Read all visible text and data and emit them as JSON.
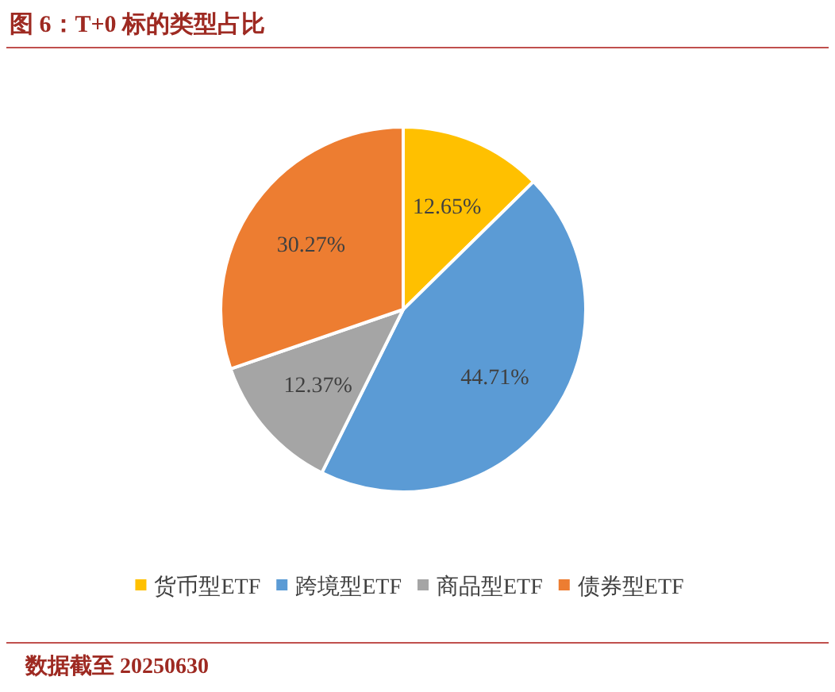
{
  "chart_data": {
    "type": "pie",
    "title": "图 6：T+0 标的类型占比",
    "categories": [
      "货币型ETF",
      "跨境型ETF",
      "商品型ETF",
      "债券型ETF"
    ],
    "values": [
      12.65,
      44.71,
      12.37,
      30.27
    ],
    "value_labels": [
      "12.65%",
      "44.71%",
      "12.37%",
      "30.27%"
    ],
    "colors": [
      "#ffc000",
      "#5b9bd5",
      "#a5a5a5",
      "#ed7d31"
    ],
    "legend": "bottom",
    "annotations": [
      "数据截至 20250630"
    ]
  }
}
